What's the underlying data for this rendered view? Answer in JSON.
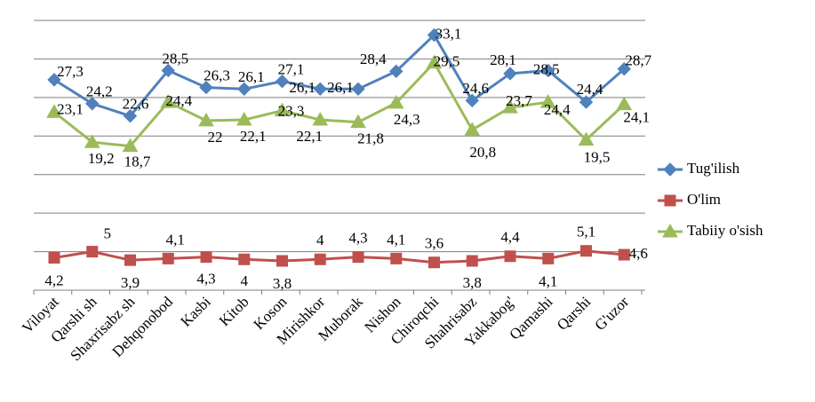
{
  "chart_data": {
    "type": "line",
    "title": "",
    "xlabel": "",
    "ylabel": "",
    "ylim": [
      0,
      35
    ],
    "grid": true,
    "legend_position": "right",
    "categories": [
      "Viloyat",
      "Qarshi sh",
      "Shaxrisabz sh",
      "Dehqonobod",
      "Kasbi",
      "Kitob",
      "Koson",
      "Mirishkor",
      "Muborak",
      "Nishon",
      "Chiroqchi",
      "Shahrisabz",
      "Yakkabog'",
      "Qamashi",
      "Qarshi",
      "G'uzor"
    ],
    "series": [
      {
        "name": "Tug'ilish",
        "color": "#4f81bd",
        "marker": "diamond",
        "values": [
          27.3,
          24.2,
          22.6,
          28.5,
          26.3,
          26.1,
          27.1,
          26.1,
          26.1,
          28.4,
          33.1,
          24.6,
          28.1,
          28.5,
          24.4,
          28.7
        ],
        "labels": [
          "27,3",
          "24,2",
          "22,6",
          "28,5",
          "26,3",
          "26,1",
          "27,1",
          "26,1",
          "26,1",
          "28,4",
          "33,1",
          "24,6",
          "28,1",
          "28,5",
          "24,4",
          "28,7"
        ]
      },
      {
        "name": "O'lim",
        "color": "#c0504d",
        "marker": "square",
        "values": [
          4.2,
          5.0,
          3.9,
          4.1,
          4.3,
          4.0,
          3.8,
          4.0,
          4.3,
          4.1,
          3.6,
          3.8,
          4.4,
          4.1,
          5.1,
          4.6
        ],
        "labels": [
          "4,2",
          "5",
          "3,9",
          "4,1",
          "4,3",
          "4",
          "3,8",
          "4",
          "4,3",
          "4,1",
          "3,6",
          "3,8",
          "4,4",
          "4,1",
          "5,1",
          "4,6"
        ]
      },
      {
        "name": "Tabiiy o'sish",
        "color": "#9bbb59",
        "marker": "triangle",
        "values": [
          23.1,
          19.2,
          18.7,
          24.4,
          22.0,
          22.1,
          23.3,
          22.1,
          21.8,
          24.3,
          29.5,
          20.8,
          23.7,
          24.4,
          19.5,
          24.1
        ],
        "labels": [
          "23,1",
          "19,2",
          "18,7",
          "24,4",
          "22",
          "22,1",
          "23,3",
          "22,1",
          "21,8",
          "24,3",
          "29,5",
          "20,8",
          "23,7",
          "24,4",
          "19,5",
          "24,1"
        ]
      }
    ]
  }
}
